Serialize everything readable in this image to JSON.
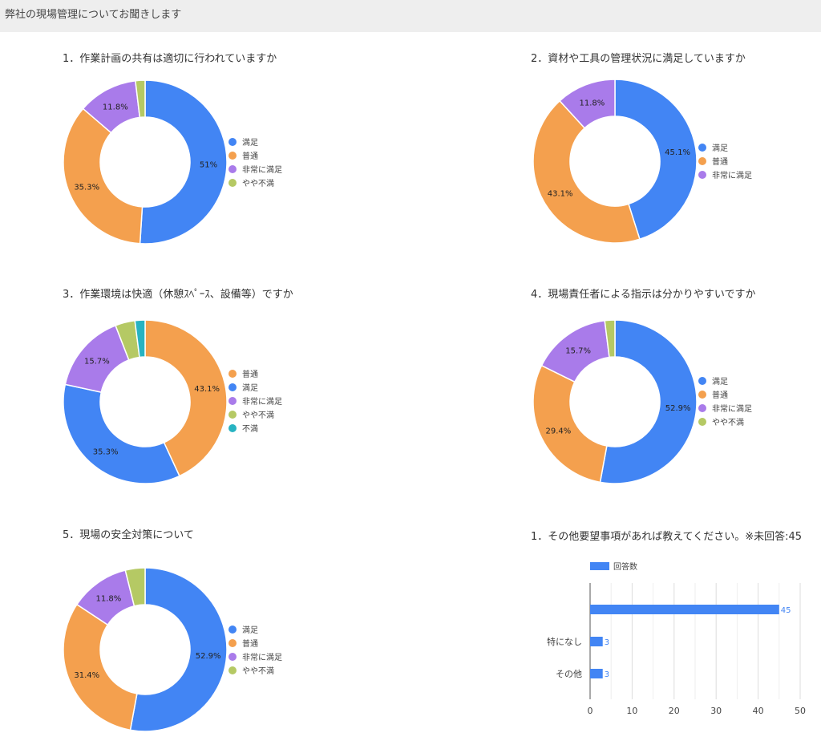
{
  "header": {
    "title": "弊社の現場管理についてお聞きします"
  },
  "colors": {
    "満足": "#4285f4",
    "普通": "#f4a04e",
    "非常に満足": "#a97bea",
    "やや不満": "#b5c964",
    "不満": "#27b3c2"
  },
  "chart_data": [
    {
      "type": "pie",
      "donut": true,
      "title": "1．作業計画の共有は適切に行われていますか",
      "slices": [
        {
          "label": "満足",
          "value": 51,
          "display": "51%"
        },
        {
          "label": "普通",
          "value": 35.3,
          "display": "35.3%"
        },
        {
          "label": "非常に満足",
          "value": 11.8,
          "display": "11.8%"
        },
        {
          "label": "やや不満",
          "value": 1.9,
          "display": ""
        }
      ],
      "legend_placement": "right"
    },
    {
      "type": "pie",
      "donut": true,
      "title": "2．資材や工具の管理状況に満足していますか",
      "slices": [
        {
          "label": "満足",
          "value": 45.1,
          "display": "45.1%"
        },
        {
          "label": "普通",
          "value": 43.1,
          "display": "43.1%"
        },
        {
          "label": "非常に満足",
          "value": 11.8,
          "display": "11.8%"
        }
      ],
      "legend_placement": "right"
    },
    {
      "type": "pie",
      "donut": true,
      "title": "3．作業環境は快適（休憩ｽﾍﾟｰｽ、設備等）ですか",
      "slices": [
        {
          "label": "普通",
          "value": 43.1,
          "display": "43.1%"
        },
        {
          "label": "満足",
          "value": 35.3,
          "display": "35.3%"
        },
        {
          "label": "非常に満足",
          "value": 15.7,
          "display": "15.7%"
        },
        {
          "label": "やや不満",
          "value": 3.9,
          "display": ""
        },
        {
          "label": "不満",
          "value": 2.0,
          "display": ""
        }
      ],
      "legend_placement": "right"
    },
    {
      "type": "pie",
      "donut": true,
      "title": "4．現場責任者による指示は分かりやすいですか",
      "slices": [
        {
          "label": "満足",
          "value": 52.9,
          "display": "52.9%"
        },
        {
          "label": "普通",
          "value": 29.4,
          "display": "29.4%"
        },
        {
          "label": "非常に満足",
          "value": 15.7,
          "display": "15.7%"
        },
        {
          "label": "やや不満",
          "value": 2.0,
          "display": ""
        }
      ],
      "legend_placement": "right"
    },
    {
      "type": "pie",
      "donut": true,
      "title": "5．現場の安全対策について",
      "slices": [
        {
          "label": "満足",
          "value": 52.9,
          "display": "52.9%"
        },
        {
          "label": "普通",
          "value": 31.4,
          "display": "31.4%"
        },
        {
          "label": "非常に満足",
          "value": 11.8,
          "display": "11.8%"
        },
        {
          "label": "やや不満",
          "value": 3.9,
          "display": ""
        }
      ],
      "legend_placement": "right"
    },
    {
      "type": "bar",
      "orientation": "horizontal",
      "title": "1．その他要望事項があれば教えてください。※未回答:45",
      "categories": [
        "",
        "特になし",
        "その他"
      ],
      "series": [
        {
          "name": "回答数",
          "values": [
            45,
            3,
            3
          ]
        }
      ],
      "xlim": [
        0,
        50
      ],
      "xticks": [
        0,
        10,
        20,
        30,
        40,
        50
      ],
      "grid": true,
      "legend_placement": "top-left"
    }
  ]
}
